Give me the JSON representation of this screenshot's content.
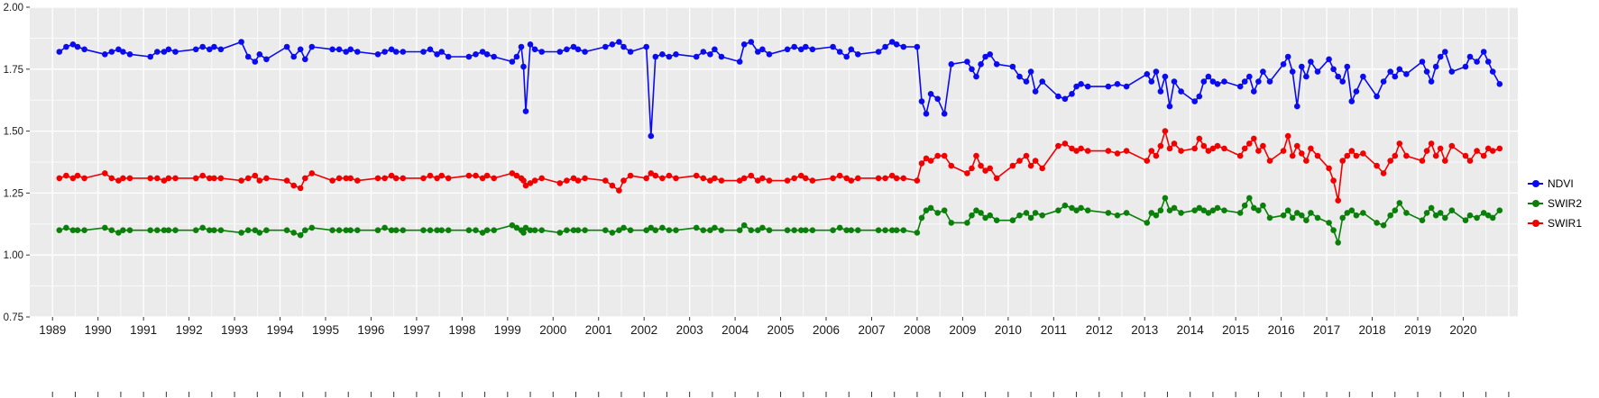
{
  "chart_data": {
    "type": "line",
    "title": "",
    "xlabel": "",
    "ylabel": "",
    "panel_bg": "#EBEBEB",
    "grid_color": "#FFFFFF",
    "axis_text_color": "#1a1a1a",
    "tick_color": "#333333",
    "legend_position": "right",
    "x_domain": [
      1988.5,
      2021.2
    ],
    "y_domain": [
      0.75,
      2.0
    ],
    "x_ticks": [
      "1989",
      "1990",
      "1991",
      "1992",
      "1993",
      "1994",
      "1995",
      "1996",
      "1997",
      "1998",
      "1999",
      "2000",
      "2001",
      "2002",
      "2003",
      "2004",
      "2005",
      "2006",
      "2007",
      "2008",
      "2009",
      "2010",
      "2011",
      "2012",
      "2013",
      "2014",
      "2015",
      "2016",
      "2017",
      "2018",
      "2019",
      "2020"
    ],
    "y_ticks": [
      0.75,
      1.0,
      1.25,
      1.5,
      1.75,
      2.0
    ],
    "y_tick_labels": [
      "0.75",
      "1.00",
      "1.25",
      "1.50",
      "1.75",
      "2.00"
    ],
    "x": [
      1989.15,
      1989.3,
      1989.45,
      1989.55,
      1989.7,
      1990.15,
      1990.3,
      1990.45,
      1990.55,
      1990.7,
      1991.15,
      1991.3,
      1991.45,
      1991.55,
      1991.7,
      1992.15,
      1992.3,
      1992.45,
      1992.55,
      1992.7,
      1993.15,
      1993.3,
      1993.45,
      1993.55,
      1993.7,
      1994.15,
      1994.3,
      1994.45,
      1994.55,
      1994.7,
      1995.15,
      1995.3,
      1995.45,
      1995.55,
      1995.7,
      1996.15,
      1996.3,
      1996.45,
      1996.55,
      1996.7,
      1997.15,
      1997.3,
      1997.45,
      1997.55,
      1997.7,
      1998.15,
      1998.3,
      1998.45,
      1998.55,
      1998.7,
      1999.1,
      1999.2,
      1999.3,
      1999.35,
      1999.4,
      1999.5,
      1999.6,
      1999.75,
      2000.15,
      2000.3,
      2000.45,
      2000.55,
      2000.7,
      2001.15,
      2001.3,
      2001.45,
      2001.55,
      2001.7,
      2002.05,
      2002.15,
      2002.25,
      2002.4,
      2002.55,
      2002.7,
      2003.15,
      2003.3,
      2003.45,
      2003.55,
      2003.7,
      2004.1,
      2004.2,
      2004.35,
      2004.5,
      2004.6,
      2004.75,
      2005.15,
      2005.3,
      2005.45,
      2005.55,
      2005.7,
      2006.15,
      2006.3,
      2006.45,
      2006.55,
      2006.7,
      2007.15,
      2007.3,
      2007.45,
      2007.55,
      2007.7,
      2008.0,
      2008.1,
      2008.2,
      2008.3,
      2008.45,
      2008.6,
      2008.75,
      2009.1,
      2009.2,
      2009.3,
      2009.4,
      2009.5,
      2009.6,
      2009.75,
      2010.1,
      2010.25,
      2010.4,
      2010.5,
      2010.6,
      2010.75,
      2011.1,
      2011.25,
      2011.4,
      2011.5,
      2011.6,
      2011.75,
      2012.2,
      2012.4,
      2012.6,
      2013.05,
      2013.15,
      2013.25,
      2013.35,
      2013.45,
      2013.55,
      2013.65,
      2013.8,
      2014.1,
      2014.2,
      2014.3,
      2014.4,
      2014.5,
      2014.6,
      2014.75,
      2015.1,
      2015.2,
      2015.3,
      2015.4,
      2015.5,
      2015.6,
      2015.75,
      2016.05,
      2016.15,
      2016.25,
      2016.35,
      2016.45,
      2016.55,
      2016.65,
      2016.8,
      2017.05,
      2017.15,
      2017.25,
      2017.35,
      2017.45,
      2017.55,
      2017.65,
      2017.8,
      2018.1,
      2018.25,
      2018.4,
      2018.5,
      2018.6,
      2018.75,
      2019.1,
      2019.2,
      2019.3,
      2019.4,
      2019.5,
      2019.6,
      2019.75,
      2020.05,
      2020.15,
      2020.3,
      2020.45,
      2020.55,
      2020.65,
      2020.8
    ],
    "series": [
      {
        "name": "NDVI",
        "color": "#0b0bf0",
        "values": [
          1.82,
          1.84,
          1.85,
          1.84,
          1.83,
          1.81,
          1.82,
          1.83,
          1.82,
          1.81,
          1.8,
          1.82,
          1.82,
          1.83,
          1.82,
          1.83,
          1.84,
          1.83,
          1.84,
          1.83,
          1.86,
          1.8,
          1.78,
          1.81,
          1.79,
          1.84,
          1.8,
          1.83,
          1.79,
          1.84,
          1.83,
          1.83,
          1.82,
          1.83,
          1.82,
          1.81,
          1.82,
          1.83,
          1.82,
          1.82,
          1.82,
          1.83,
          1.81,
          1.82,
          1.8,
          1.8,
          1.81,
          1.82,
          1.81,
          1.8,
          1.78,
          1.8,
          1.84,
          1.76,
          1.58,
          1.85,
          1.83,
          1.82,
          1.82,
          1.83,
          1.84,
          1.83,
          1.82,
          1.84,
          1.85,
          1.86,
          1.84,
          1.82,
          1.84,
          1.48,
          1.8,
          1.81,
          1.8,
          1.81,
          1.8,
          1.82,
          1.81,
          1.83,
          1.8,
          1.78,
          1.85,
          1.86,
          1.82,
          1.83,
          1.81,
          1.83,
          1.84,
          1.83,
          1.84,
          1.83,
          1.84,
          1.82,
          1.8,
          1.83,
          1.81,
          1.82,
          1.84,
          1.86,
          1.85,
          1.84,
          1.84,
          1.62,
          1.57,
          1.65,
          1.63,
          1.57,
          1.77,
          1.78,
          1.75,
          1.72,
          1.77,
          1.8,
          1.81,
          1.77,
          1.76,
          1.72,
          1.7,
          1.74,
          1.66,
          1.7,
          1.64,
          1.63,
          1.65,
          1.68,
          1.69,
          1.68,
          1.68,
          1.69,
          1.68,
          1.73,
          1.7,
          1.74,
          1.66,
          1.72,
          1.6,
          1.7,
          1.66,
          1.62,
          1.64,
          1.7,
          1.72,
          1.7,
          1.69,
          1.7,
          1.68,
          1.7,
          1.72,
          1.66,
          1.7,
          1.74,
          1.7,
          1.77,
          1.8,
          1.74,
          1.6,
          1.76,
          1.72,
          1.78,
          1.74,
          1.79,
          1.75,
          1.72,
          1.7,
          1.76,
          1.62,
          1.66,
          1.72,
          1.64,
          1.7,
          1.74,
          1.72,
          1.75,
          1.73,
          1.78,
          1.74,
          1.7,
          1.76,
          1.8,
          1.82,
          1.74,
          1.76,
          1.8,
          1.78,
          1.82,
          1.78,
          1.74,
          1.69
        ]
      },
      {
        "name": "SWIR2",
        "color": "#0a800a",
        "values": [
          1.1,
          1.11,
          1.1,
          1.1,
          1.1,
          1.11,
          1.1,
          1.09,
          1.1,
          1.1,
          1.1,
          1.1,
          1.1,
          1.1,
          1.1,
          1.1,
          1.11,
          1.1,
          1.1,
          1.1,
          1.09,
          1.1,
          1.1,
          1.09,
          1.1,
          1.1,
          1.09,
          1.08,
          1.1,
          1.11,
          1.1,
          1.1,
          1.1,
          1.1,
          1.1,
          1.1,
          1.11,
          1.1,
          1.1,
          1.1,
          1.1,
          1.1,
          1.1,
          1.1,
          1.1,
          1.1,
          1.1,
          1.09,
          1.1,
          1.1,
          1.12,
          1.11,
          1.1,
          1.09,
          1.11,
          1.1,
          1.1,
          1.1,
          1.09,
          1.1,
          1.1,
          1.1,
          1.1,
          1.1,
          1.09,
          1.1,
          1.11,
          1.1,
          1.1,
          1.11,
          1.1,
          1.11,
          1.1,
          1.1,
          1.11,
          1.1,
          1.1,
          1.11,
          1.1,
          1.1,
          1.12,
          1.1,
          1.1,
          1.11,
          1.1,
          1.1,
          1.1,
          1.1,
          1.1,
          1.1,
          1.1,
          1.11,
          1.1,
          1.1,
          1.1,
          1.1,
          1.1,
          1.1,
          1.1,
          1.1,
          1.09,
          1.15,
          1.18,
          1.19,
          1.17,
          1.18,
          1.13,
          1.13,
          1.16,
          1.18,
          1.17,
          1.15,
          1.16,
          1.14,
          1.14,
          1.16,
          1.17,
          1.15,
          1.17,
          1.16,
          1.18,
          1.2,
          1.19,
          1.18,
          1.19,
          1.18,
          1.17,
          1.16,
          1.17,
          1.13,
          1.17,
          1.16,
          1.18,
          1.23,
          1.18,
          1.19,
          1.17,
          1.18,
          1.19,
          1.18,
          1.17,
          1.18,
          1.19,
          1.18,
          1.17,
          1.2,
          1.23,
          1.19,
          1.18,
          1.2,
          1.15,
          1.16,
          1.18,
          1.15,
          1.17,
          1.16,
          1.14,
          1.17,
          1.15,
          1.13,
          1.1,
          1.05,
          1.15,
          1.17,
          1.18,
          1.16,
          1.17,
          1.13,
          1.12,
          1.16,
          1.18,
          1.21,
          1.17,
          1.14,
          1.17,
          1.19,
          1.16,
          1.17,
          1.15,
          1.18,
          1.14,
          1.16,
          1.15,
          1.17,
          1.16,
          1.15,
          1.18
        ]
      },
      {
        "name": "SWIR1",
        "color": "#f20000",
        "values": [
          1.31,
          1.32,
          1.31,
          1.32,
          1.31,
          1.33,
          1.31,
          1.3,
          1.31,
          1.31,
          1.31,
          1.31,
          1.3,
          1.31,
          1.31,
          1.31,
          1.32,
          1.31,
          1.31,
          1.31,
          1.3,
          1.31,
          1.32,
          1.3,
          1.31,
          1.3,
          1.28,
          1.27,
          1.31,
          1.33,
          1.3,
          1.31,
          1.31,
          1.31,
          1.3,
          1.31,
          1.31,
          1.32,
          1.31,
          1.31,
          1.31,
          1.32,
          1.31,
          1.32,
          1.31,
          1.32,
          1.32,
          1.31,
          1.32,
          1.31,
          1.33,
          1.32,
          1.31,
          1.3,
          1.28,
          1.29,
          1.3,
          1.31,
          1.29,
          1.3,
          1.31,
          1.3,
          1.31,
          1.3,
          1.28,
          1.26,
          1.3,
          1.32,
          1.31,
          1.33,
          1.32,
          1.31,
          1.32,
          1.31,
          1.32,
          1.31,
          1.3,
          1.31,
          1.3,
          1.3,
          1.31,
          1.32,
          1.3,
          1.31,
          1.3,
          1.3,
          1.31,
          1.32,
          1.31,
          1.3,
          1.31,
          1.32,
          1.31,
          1.3,
          1.31,
          1.31,
          1.31,
          1.32,
          1.31,
          1.31,
          1.3,
          1.37,
          1.39,
          1.38,
          1.4,
          1.4,
          1.36,
          1.33,
          1.35,
          1.4,
          1.36,
          1.34,
          1.35,
          1.31,
          1.36,
          1.38,
          1.4,
          1.36,
          1.38,
          1.35,
          1.44,
          1.45,
          1.43,
          1.42,
          1.43,
          1.42,
          1.42,
          1.41,
          1.42,
          1.38,
          1.42,
          1.4,
          1.44,
          1.5,
          1.43,
          1.45,
          1.42,
          1.43,
          1.47,
          1.44,
          1.42,
          1.43,
          1.44,
          1.43,
          1.4,
          1.43,
          1.45,
          1.47,
          1.42,
          1.44,
          1.38,
          1.42,
          1.48,
          1.4,
          1.44,
          1.41,
          1.38,
          1.43,
          1.4,
          1.35,
          1.3,
          1.22,
          1.38,
          1.4,
          1.42,
          1.4,
          1.41,
          1.36,
          1.33,
          1.38,
          1.4,
          1.45,
          1.4,
          1.38,
          1.42,
          1.45,
          1.4,
          1.43,
          1.38,
          1.44,
          1.4,
          1.38,
          1.42,
          1.4,
          1.43,
          1.42,
          1.43
        ]
      }
    ]
  }
}
